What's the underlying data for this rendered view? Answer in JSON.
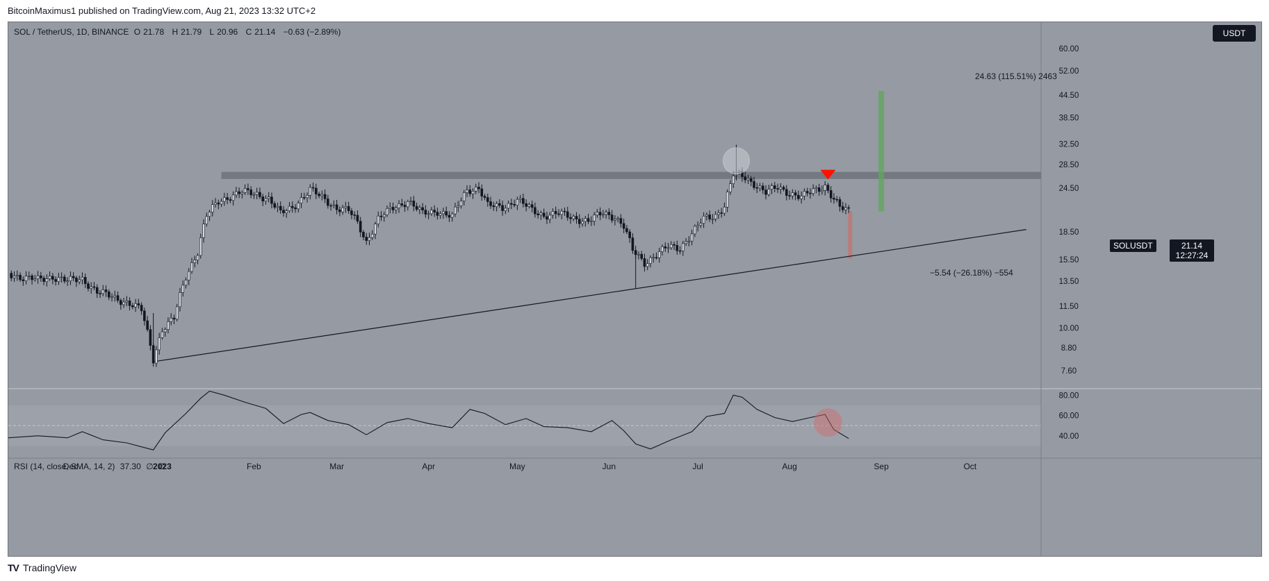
{
  "header": {
    "published_by": "BitcoinMaximus1 published on TradingView.com, Aug 21, 2023 13:32 UTC+2"
  },
  "symbol_line": {
    "pair": "SOL / TetherUS, 1D, BINANCE",
    "open_label": "O",
    "open": "21.78",
    "high_label": "H",
    "high": "21.79",
    "low_label": "L",
    "low": "20.96",
    "close_label": "C",
    "close": "21.14",
    "change": "−0.63 (−2.89%)"
  },
  "currency_button": "USDT",
  "price_tag": {
    "symbol": "SOLUSDT",
    "price": "21.14",
    "countdown": "12:27:24"
  },
  "annotations": {
    "long_target": "24.63 (115.51%) 2463",
    "short_target": "−5.54 (−26.18%) −554"
  },
  "rsi": {
    "title": "RSI (14, close, SMA, 14, 2)",
    "value": "37.30",
    "extra1": "∅",
    "extra2": "∅"
  },
  "footer": {
    "brand": "TradingView"
  },
  "colors": {
    "background": "#959aa3",
    "candle": "#131722",
    "resistance_band": "#6e737b",
    "green_zone": "#5ea85a",
    "red_zone": "#c0756f",
    "bearish_marker": "#ff1100",
    "rsi_circle": "#d46a6a"
  },
  "chart_data": [
    {
      "type": "candlestick",
      "symbol": "SOLUSDT",
      "interval": "1D",
      "y_scale": "log",
      "y_ticks": [
        "60.00",
        "52.00",
        "44.50",
        "38.50",
        "32.50",
        "28.50",
        "24.50",
        "18.50",
        "15.50",
        "13.50",
        "11.50",
        "10.00",
        "8.80",
        "7.60"
      ],
      "x_ticks": [
        "Dec",
        "2023",
        "Feb",
        "Mar",
        "Apr",
        "May",
        "Jun",
        "Jul",
        "Aug",
        "Sep",
        "Oct"
      ],
      "x_tick_dates": [
        "2022-12-01",
        "2023-01-01",
        "2023-02-01",
        "2023-03-01",
        "2023-04-01",
        "2023-05-01",
        "2023-06-01",
        "2023-07-01",
        "2023-08-01",
        "2023-09-01",
        "2023-10-01"
      ],
      "closes": [
        [
          "2022-11-10",
          14.2
        ],
        [
          "2022-11-15",
          13.8
        ],
        [
          "2022-11-20",
          13.6
        ],
        [
          "2022-11-25",
          13.9
        ],
        [
          "2022-11-30",
          13.5
        ],
        [
          "2022-12-05",
          13.7
        ],
        [
          "2022-12-10",
          12.6
        ],
        [
          "2022-12-15",
          12.2
        ],
        [
          "2022-12-20",
          11.8
        ],
        [
          "2022-12-25",
          11.2
        ],
        [
          "2022-12-29",
          8.2
        ],
        [
          "2023-01-01",
          9.9
        ],
        [
          "2023-01-05",
          10.6
        ],
        [
          "2023-01-09",
          13.9
        ],
        [
          "2023-01-13",
          16.3
        ],
        [
          "2023-01-16",
          20.5
        ],
        [
          "2023-01-20",
          22.5
        ],
        [
          "2023-01-24",
          23.3
        ],
        [
          "2023-01-28",
          23.9
        ],
        [
          "2023-02-02",
          23.6
        ],
        [
          "2023-02-06",
          22.9
        ],
        [
          "2023-02-10",
          20.8
        ],
        [
          "2023-02-14",
          21.7
        ],
        [
          "2023-02-18",
          23.3
        ],
        [
          "2023-02-20",
          24.2
        ],
        [
          "2023-02-25",
          22.8
        ],
        [
          "2023-03-01",
          21.6
        ],
        [
          "2023-03-05",
          21.2
        ],
        [
          "2023-03-08",
          19.6
        ],
        [
          "2023-03-11",
          17.4
        ],
        [
          "2023-03-15",
          20.1
        ],
        [
          "2023-03-20",
          21.6
        ],
        [
          "2023-03-25",
          22.6
        ],
        [
          "2023-03-30",
          20.8
        ],
        [
          "2023-04-04",
          21.2
        ],
        [
          "2023-04-09",
          20.4
        ],
        [
          "2023-04-14",
          24.2
        ],
        [
          "2023-04-18",
          24.6
        ],
        [
          "2023-04-21",
          21.9
        ],
        [
          "2023-04-26",
          21.7
        ],
        [
          "2023-05-01",
          22.7
        ],
        [
          "2023-05-06",
          21.3
        ],
        [
          "2023-05-10",
          20.6
        ],
        [
          "2023-05-15",
          20.8
        ],
        [
          "2023-05-20",
          20.3
        ],
        [
          "2023-05-25",
          19.8
        ],
        [
          "2023-05-30",
          20.9
        ],
        [
          "2023-06-03",
          20.4
        ],
        [
          "2023-06-06",
          19.2
        ],
        [
          "2023-06-09",
          16.4
        ],
        [
          "2023-06-13",
          15.2
        ],
        [
          "2023-06-17",
          16.0
        ],
        [
          "2023-06-21",
          16.8
        ],
        [
          "2023-06-25",
          16.7
        ],
        [
          "2023-06-29",
          18.3
        ],
        [
          "2023-07-03",
          20.1
        ],
        [
          "2023-07-07",
          20.6
        ],
        [
          "2023-07-10",
          21.9
        ],
        [
          "2023-07-13",
          26.7
        ],
        [
          "2023-07-16",
          26.5
        ],
        [
          "2023-07-20",
          25.3
        ],
        [
          "2023-07-24",
          23.8
        ],
        [
          "2023-07-28",
          24.6
        ],
        [
          "2023-08-01",
          23.8
        ],
        [
          "2023-08-05",
          23.1
        ],
        [
          "2023-08-09",
          24.1
        ],
        [
          "2023-08-13",
          24.9
        ],
        [
          "2023-08-16",
          22.8
        ],
        [
          "2023-08-18",
          21.6
        ],
        [
          "2023-08-21",
          21.14
        ]
      ],
      "resistance_zone": [
        26.0,
        27.2
      ],
      "ascending_support": [
        [
          "2022-12-29",
          8.05
        ],
        [
          "2023-06-10",
          13.1
        ],
        [
          "2023-10-20",
          18.8
        ]
      ],
      "measure_up": {
        "from": 21.1,
        "to": 45.7,
        "label": "24.63 (115.51%) 2463"
      },
      "measure_down": {
        "from": 21.1,
        "to": 15.6,
        "label": "−5.54 (−26.18%) −554"
      }
    },
    {
      "type": "line",
      "name": "RSI (14, close, SMA, 14, 2)",
      "ylim": [
        20,
        85
      ],
      "y_ticks": [
        "80.00",
        "60.00",
        "40.00"
      ],
      "bands": [
        30,
        70
      ],
      "midline": 50,
      "values": [
        [
          "2022-11-10",
          38
        ],
        [
          "2022-11-20",
          40
        ],
        [
          "2022-11-30",
          38
        ],
        [
          "2022-12-05",
          44
        ],
        [
          "2022-12-12",
          36
        ],
        [
          "2022-12-20",
          33
        ],
        [
          "2022-12-29",
          26
        ],
        [
          "2023-01-02",
          43
        ],
        [
          "2023-01-09",
          62
        ],
        [
          "2023-01-14",
          77
        ],
        [
          "2023-01-17",
          84
        ],
        [
          "2023-01-22",
          80
        ],
        [
          "2023-01-29",
          73
        ],
        [
          "2023-02-05",
          67
        ],
        [
          "2023-02-11",
          52
        ],
        [
          "2023-02-17",
          61
        ],
        [
          "2023-02-20",
          63
        ],
        [
          "2023-02-26",
          55
        ],
        [
          "2023-03-05",
          51
        ],
        [
          "2023-03-11",
          41
        ],
        [
          "2023-03-18",
          53
        ],
        [
          "2023-03-25",
          57
        ],
        [
          "2023-04-01",
          52
        ],
        [
          "2023-04-09",
          48
        ],
        [
          "2023-04-15",
          66
        ],
        [
          "2023-04-20",
          62
        ],
        [
          "2023-04-27",
          51
        ],
        [
          "2023-05-04",
          57
        ],
        [
          "2023-05-10",
          49
        ],
        [
          "2023-05-18",
          48
        ],
        [
          "2023-05-26",
          44
        ],
        [
          "2023-06-02",
          55
        ],
        [
          "2023-06-06",
          45
        ],
        [
          "2023-06-10",
          32
        ],
        [
          "2023-06-15",
          27
        ],
        [
          "2023-06-22",
          36
        ],
        [
          "2023-06-29",
          44
        ],
        [
          "2023-07-04",
          59
        ],
        [
          "2023-07-10",
          62
        ],
        [
          "2023-07-13",
          80
        ],
        [
          "2023-07-16",
          78
        ],
        [
          "2023-07-21",
          66
        ],
        [
          "2023-07-27",
          58
        ],
        [
          "2023-08-02",
          54
        ],
        [
          "2023-08-08",
          58
        ],
        [
          "2023-08-13",
          61
        ],
        [
          "2023-08-16",
          46
        ],
        [
          "2023-08-21",
          37.3
        ]
      ]
    }
  ]
}
